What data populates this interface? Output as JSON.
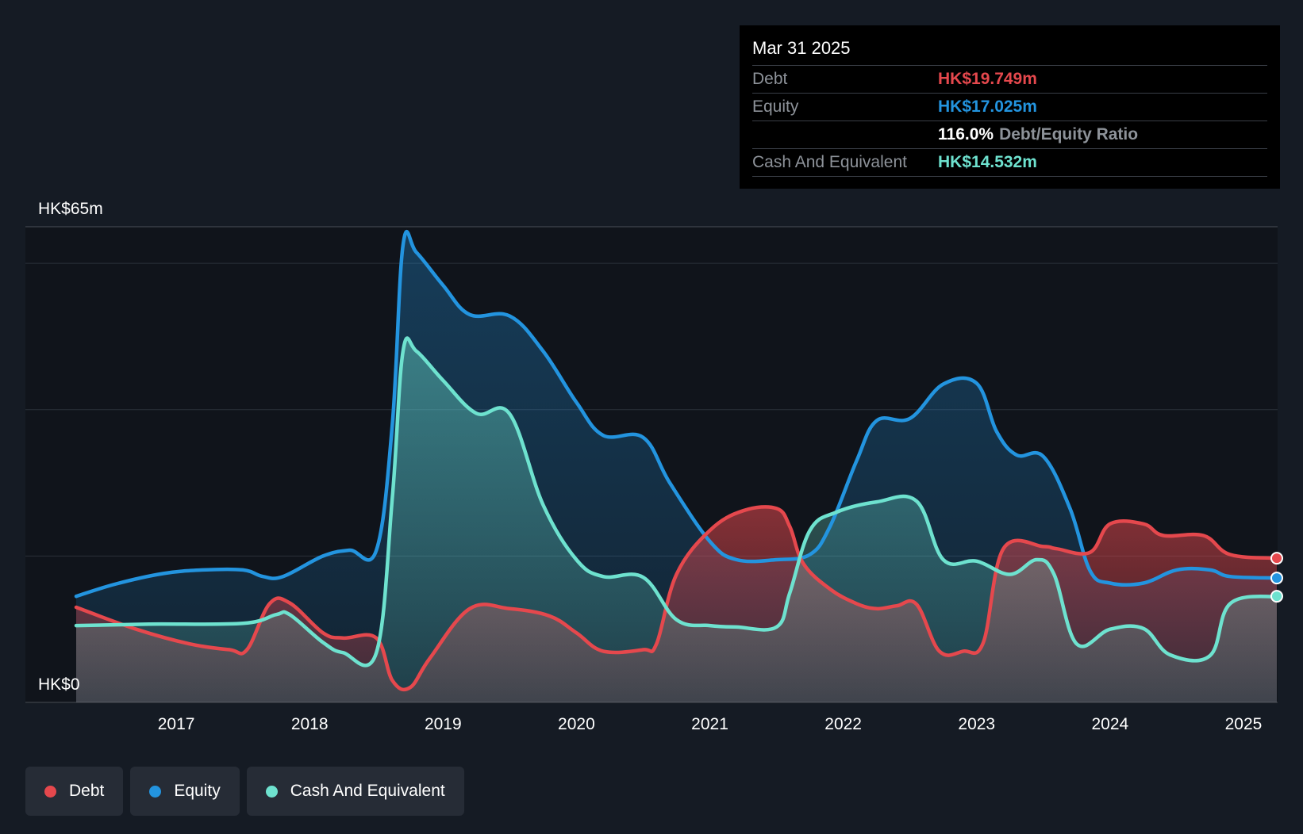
{
  "tooltip": {
    "date": "Mar 31 2025",
    "rows": [
      {
        "label": "Debt",
        "value": "HK$19.749m"
      },
      {
        "label": "Equity",
        "value": "HK$17.025m"
      },
      {
        "ratio_value": "116.0%",
        "ratio_label": "Debt/Equity Ratio"
      },
      {
        "label": "Cash And Equivalent",
        "value": "HK$14.532m"
      }
    ]
  },
  "legend": [
    {
      "label": "Debt",
      "color": "#e5484d"
    },
    {
      "label": "Equity",
      "color": "#2394df"
    },
    {
      "label": "Cash And Equivalent",
      "color": "#6ee2cf"
    }
  ],
  "chart_data": {
    "type": "area",
    "y_top_label": "HK$65m",
    "y_bottom_label": "HK$0",
    "ylim": [
      0,
      65
    ],
    "xlim": [
      2016.25,
      2025.25
    ],
    "x_ticks": [
      2017,
      2018,
      2019,
      2020,
      2021,
      2022,
      2023,
      2024,
      2025
    ],
    "x_tick_labels": [
      "2017",
      "2018",
      "2019",
      "2020",
      "2021",
      "2022",
      "2023",
      "2024",
      "2025"
    ],
    "grid_y": [
      20,
      40,
      60
    ],
    "series": [
      {
        "name": "Debt",
        "color": "#e5484d",
        "points": [
          [
            2016.25,
            13
          ],
          [
            2016.7,
            10
          ],
          [
            2017.1,
            8
          ],
          [
            2017.4,
            7.2
          ],
          [
            2017.53,
            7.2
          ],
          [
            2017.7,
            13.5
          ],
          [
            2017.85,
            13.6
          ],
          [
            2018.1,
            9.5
          ],
          [
            2018.25,
            8.8
          ],
          [
            2018.5,
            8.8
          ],
          [
            2018.62,
            3
          ],
          [
            2018.75,
            2
          ],
          [
            2018.9,
            6
          ],
          [
            2019.2,
            12.8
          ],
          [
            2019.5,
            12.8
          ],
          [
            2019.8,
            11.8
          ],
          [
            2020.0,
            9.5
          ],
          [
            2020.2,
            7
          ],
          [
            2020.5,
            7.2
          ],
          [
            2020.6,
            8
          ],
          [
            2020.75,
            17.5
          ],
          [
            2021.0,
            23.5
          ],
          [
            2021.25,
            26.2
          ],
          [
            2021.5,
            26.5
          ],
          [
            2021.6,
            24
          ],
          [
            2021.7,
            19
          ],
          [
            2021.9,
            15.5
          ],
          [
            2022.1,
            13.5
          ],
          [
            2022.25,
            12.8
          ],
          [
            2022.4,
            13.2
          ],
          [
            2022.55,
            13.4
          ],
          [
            2022.72,
            7
          ],
          [
            2022.9,
            7
          ],
          [
            2023.05,
            8.2
          ],
          [
            2023.2,
            21
          ],
          [
            2023.5,
            21.3
          ],
          [
            2023.6,
            21
          ],
          [
            2023.85,
            20.5
          ],
          [
            2024.0,
            24.4
          ],
          [
            2024.25,
            24.4
          ],
          [
            2024.4,
            22.8
          ],
          [
            2024.7,
            22.8
          ],
          [
            2024.9,
            20.2
          ],
          [
            2025.25,
            19.7
          ]
        ]
      },
      {
        "name": "Equity",
        "color": "#2394df",
        "points": [
          [
            2016.25,
            14.5
          ],
          [
            2016.55,
            16.2
          ],
          [
            2016.9,
            17.6
          ],
          [
            2017.2,
            18.1
          ],
          [
            2017.5,
            18.1
          ],
          [
            2017.65,
            17.2
          ],
          [
            2017.8,
            17.2
          ],
          [
            2018.1,
            20
          ],
          [
            2018.3,
            20.8
          ],
          [
            2018.5,
            20.8
          ],
          [
            2018.62,
            38
          ],
          [
            2018.7,
            62.5
          ],
          [
            2018.8,
            61.5
          ],
          [
            2019.0,
            57
          ],
          [
            2019.2,
            53
          ],
          [
            2019.5,
            52.8
          ],
          [
            2019.75,
            48
          ],
          [
            2020.0,
            41
          ],
          [
            2020.2,
            36.5
          ],
          [
            2020.5,
            36.2
          ],
          [
            2020.7,
            30
          ],
          [
            2021.0,
            22
          ],
          [
            2021.2,
            19.5
          ],
          [
            2021.5,
            19.5
          ],
          [
            2021.75,
            20.2
          ],
          [
            2021.9,
            24
          ],
          [
            2022.1,
            33
          ],
          [
            2022.25,
            38.5
          ],
          [
            2022.5,
            38.8
          ],
          [
            2022.75,
            43.5
          ],
          [
            2023.0,
            43.6
          ],
          [
            2023.15,
            37
          ],
          [
            2023.3,
            33.8
          ],
          [
            2023.5,
            33.6
          ],
          [
            2023.7,
            26.5
          ],
          [
            2023.85,
            18
          ],
          [
            2024.0,
            16.3
          ],
          [
            2024.25,
            16.3
          ],
          [
            2024.5,
            18.1
          ],
          [
            2024.75,
            18.1
          ],
          [
            2024.9,
            17.2
          ],
          [
            2025.25,
            17.0
          ]
        ]
      },
      {
        "name": "Cash And Equivalent",
        "color": "#6ee2cf",
        "points": [
          [
            2016.25,
            10.5
          ],
          [
            2016.8,
            10.7
          ],
          [
            2017.5,
            10.8
          ],
          [
            2017.75,
            12
          ],
          [
            2017.85,
            12
          ],
          [
            2018.1,
            8.2
          ],
          [
            2018.25,
            6.8
          ],
          [
            2018.5,
            6.8
          ],
          [
            2018.62,
            28
          ],
          [
            2018.7,
            48
          ],
          [
            2018.8,
            48
          ],
          [
            2019.0,
            44
          ],
          [
            2019.25,
            39.5
          ],
          [
            2019.5,
            39.4
          ],
          [
            2019.75,
            27
          ],
          [
            2020.0,
            19.5
          ],
          [
            2020.2,
            17.2
          ],
          [
            2020.5,
            17.1
          ],
          [
            2020.75,
            11.3
          ],
          [
            2021.0,
            10.5
          ],
          [
            2021.2,
            10.3
          ],
          [
            2021.5,
            10.3
          ],
          [
            2021.6,
            15
          ],
          [
            2021.75,
            23.5
          ],
          [
            2021.95,
            26
          ],
          [
            2022.25,
            27.4
          ],
          [
            2022.55,
            27.5
          ],
          [
            2022.75,
            19.5
          ],
          [
            2023.0,
            19.3
          ],
          [
            2023.25,
            17.5
          ],
          [
            2023.45,
            19.5
          ],
          [
            2023.58,
            17.5
          ],
          [
            2023.75,
            8
          ],
          [
            2024.0,
            10
          ],
          [
            2024.25,
            10.1
          ],
          [
            2024.45,
            6.5
          ],
          [
            2024.75,
            6.4
          ],
          [
            2024.9,
            13.5
          ],
          [
            2025.25,
            14.5
          ]
        ]
      }
    ]
  }
}
